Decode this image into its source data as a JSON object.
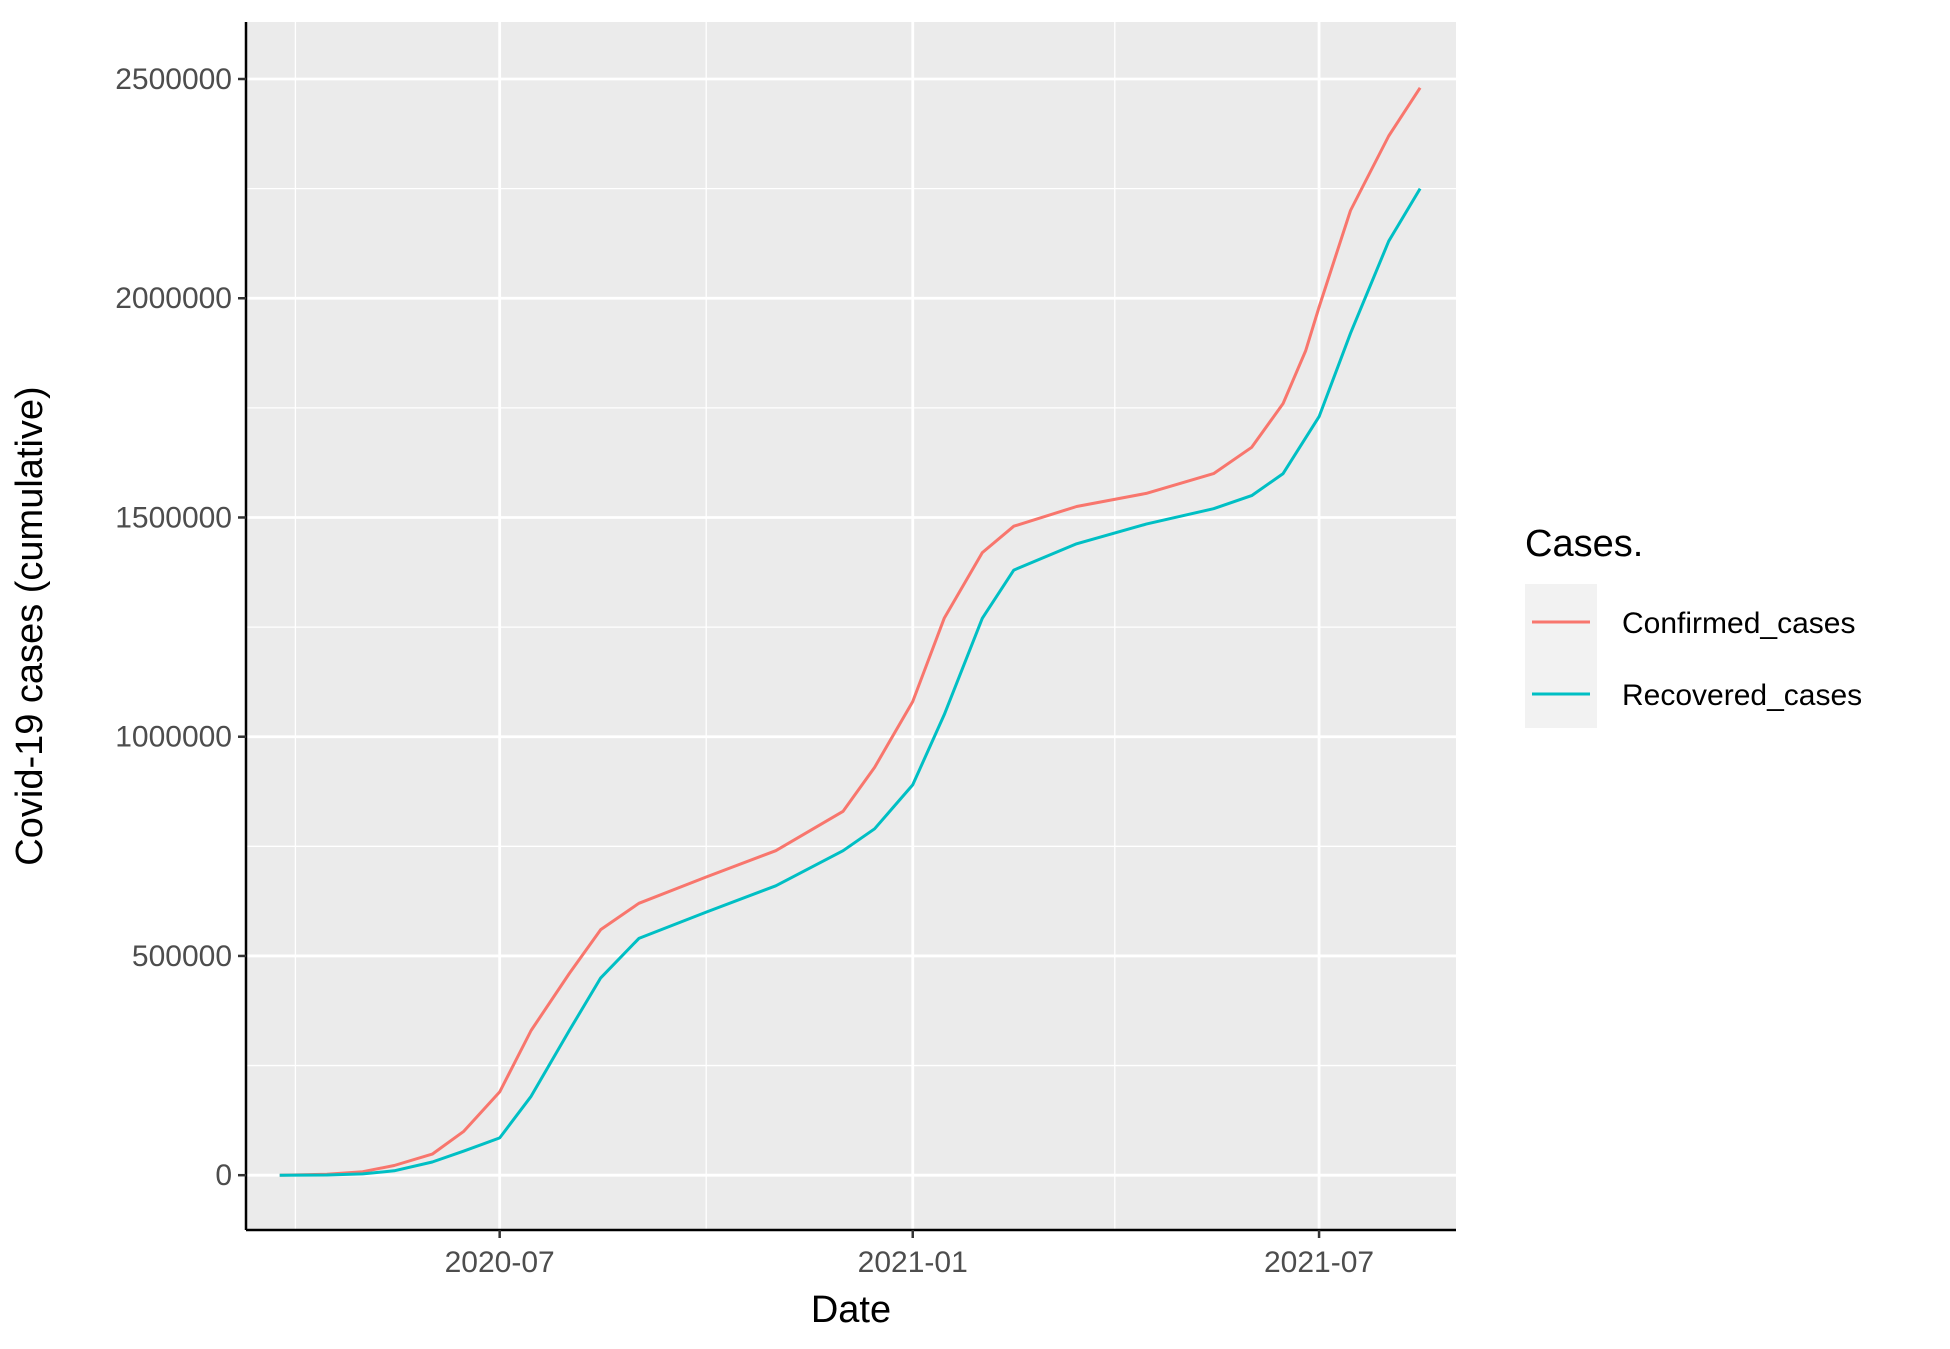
{
  "chart_data": {
    "type": "line",
    "title": "",
    "xlabel": "Date",
    "ylabel": "Covid-19 cases (cumulative)",
    "x_axis": {
      "type": "date",
      "range": [
        "2020-03-10",
        "2021-08-31"
      ],
      "tick_labels": [
        "2020-07",
        "2021-01",
        "2021-07"
      ],
      "tick_dates": [
        "2020-07-01",
        "2021-01-01",
        "2021-07-01"
      ],
      "minor_tick_dates": [
        "2020-04-01",
        "2020-10-01",
        "2021-04-01"
      ]
    },
    "y_axis": {
      "range": [
        -125000,
        2630000
      ],
      "ticks": [
        0,
        500000,
        1000000,
        1500000,
        2000000,
        2500000
      ],
      "tick_labels": [
        "0",
        "500000",
        "1000000",
        "1500000",
        "2000000",
        "2500000"
      ],
      "minor_ticks": [
        250000,
        750000,
        1250000,
        1750000,
        2250000
      ]
    },
    "grid": true,
    "legend": {
      "title": "Cases.",
      "placement": "right"
    },
    "series": [
      {
        "name": "Confirmed_cases",
        "color": "#F8766D",
        "points": [
          [
            "2020-03-25",
            0
          ],
          [
            "2020-04-15",
            2000
          ],
          [
            "2020-05-01",
            8000
          ],
          [
            "2020-05-15",
            22000
          ],
          [
            "2020-06-01",
            48000
          ],
          [
            "2020-06-15",
            100000
          ],
          [
            "2020-07-01",
            190000
          ],
          [
            "2020-07-15",
            330000
          ],
          [
            "2020-08-01",
            460000
          ],
          [
            "2020-08-15",
            560000
          ],
          [
            "2020-09-01",
            620000
          ],
          [
            "2020-10-01",
            680000
          ],
          [
            "2020-11-01",
            740000
          ],
          [
            "2020-12-01",
            830000
          ],
          [
            "2020-12-15",
            930000
          ],
          [
            "2021-01-01",
            1080000
          ],
          [
            "2021-01-15",
            1270000
          ],
          [
            "2021-02-01",
            1420000
          ],
          [
            "2021-02-15",
            1480000
          ],
          [
            "2021-03-15",
            1525000
          ],
          [
            "2021-04-15",
            1555000
          ],
          [
            "2021-05-15",
            1600000
          ],
          [
            "2021-06-01",
            1660000
          ],
          [
            "2021-06-15",
            1760000
          ],
          [
            "2021-06-25",
            1880000
          ],
          [
            "2021-07-01",
            1980000
          ],
          [
            "2021-07-15",
            2200000
          ],
          [
            "2021-08-01",
            2370000
          ],
          [
            "2021-08-15",
            2480000
          ]
        ]
      },
      {
        "name": "Recovered_cases",
        "color": "#00BFC4",
        "points": [
          [
            "2020-03-25",
            0
          ],
          [
            "2020-04-15",
            500
          ],
          [
            "2020-05-01",
            3000
          ],
          [
            "2020-05-15",
            10000
          ],
          [
            "2020-06-01",
            30000
          ],
          [
            "2020-06-15",
            55000
          ],
          [
            "2020-07-01",
            85000
          ],
          [
            "2020-07-15",
            180000
          ],
          [
            "2020-08-01",
            330000
          ],
          [
            "2020-08-15",
            450000
          ],
          [
            "2020-09-01",
            540000
          ],
          [
            "2020-10-01",
            600000
          ],
          [
            "2020-11-01",
            660000
          ],
          [
            "2020-12-01",
            740000
          ],
          [
            "2020-12-15",
            790000
          ],
          [
            "2021-01-01",
            890000
          ],
          [
            "2021-01-15",
            1050000
          ],
          [
            "2021-02-01",
            1270000
          ],
          [
            "2021-02-15",
            1380000
          ],
          [
            "2021-03-15",
            1440000
          ],
          [
            "2021-04-15",
            1485000
          ],
          [
            "2021-05-15",
            1520000
          ],
          [
            "2021-06-01",
            1550000
          ],
          [
            "2021-06-15",
            1600000
          ],
          [
            "2021-07-01",
            1730000
          ],
          [
            "2021-07-15",
            1920000
          ],
          [
            "2021-08-01",
            2130000
          ],
          [
            "2021-08-15",
            2250000
          ]
        ]
      }
    ]
  }
}
